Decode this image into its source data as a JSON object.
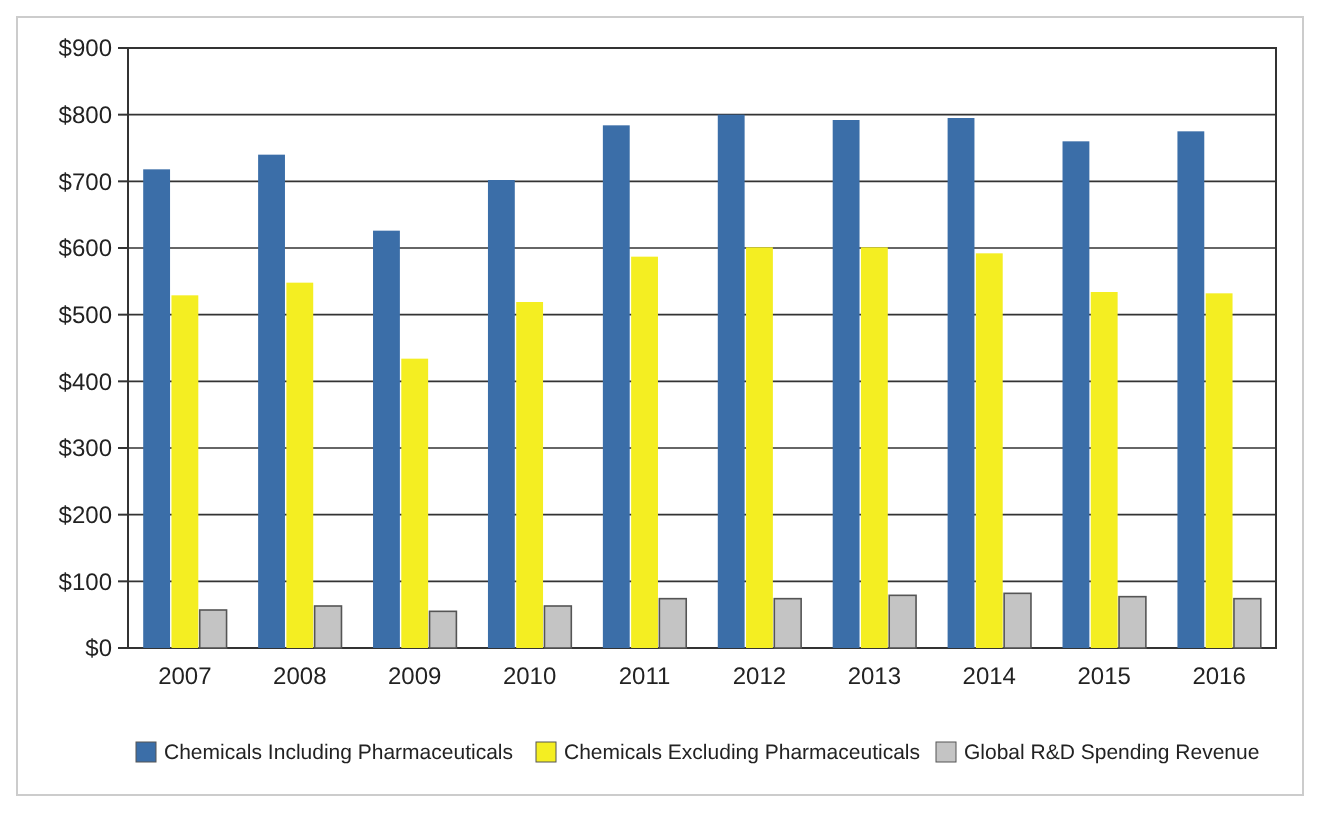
{
  "chart_data": {
    "type": "bar",
    "categories": [
      "2007",
      "2008",
      "2009",
      "2010",
      "2011",
      "2012",
      "2013",
      "2014",
      "2015",
      "2016"
    ],
    "series": [
      {
        "name": "Chemicals Including Pharmaceuticals",
        "color": "#3b6ea8",
        "values": [
          718,
          740,
          626,
          702,
          784,
          800,
          792,
          795,
          760,
          775
        ]
      },
      {
        "name": "Chemicals Excluding Pharmaceuticals",
        "color": "#f4ee22",
        "values": [
          529,
          548,
          434,
          519,
          587,
          601,
          601,
          592,
          534,
          532
        ]
      },
      {
        "name": "Global R&D Spending Revenue",
        "color": "#c4c4c4",
        "values": [
          57,
          63,
          55,
          63,
          74,
          74,
          79,
          82,
          77,
          74
        ]
      }
    ],
    "ylim": [
      0,
      900
    ],
    "yticks": [
      {
        "value": 0,
        "label": "$0"
      },
      {
        "value": 100,
        "label": "$100"
      },
      {
        "value": 200,
        "label": "$200"
      },
      {
        "value": 300,
        "label": "$300"
      },
      {
        "value": 400,
        "label": "$400"
      },
      {
        "value": 500,
        "label": "$500"
      },
      {
        "value": 600,
        "label": "$600"
      },
      {
        "value": 700,
        "label": "$700"
      },
      {
        "value": 800,
        "label": "$800"
      },
      {
        "value": 900,
        "label": "$900"
      }
    ],
    "grid": "y",
    "legend": "bottom"
  }
}
